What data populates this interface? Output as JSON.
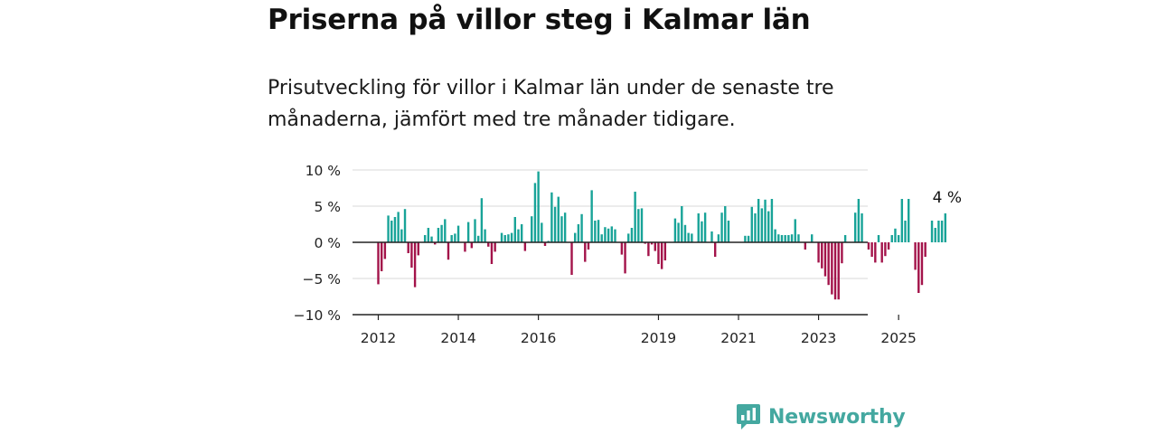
{
  "title": "Priserna på villor steg i Kalmar län",
  "subtitle": "Prisutveckling för villor i Kalmar län under de senaste tre månaderna, jämfört med tre månader tidigare.",
  "brand": {
    "name": "Newsworthy",
    "icon": "newsworthy-logo-icon",
    "color": "#44a8a0"
  },
  "colors": {
    "positive": "#18a398",
    "negative": "#a3134a",
    "grid": "#d9d9d9",
    "zero": "#222222"
  },
  "chart_data": {
    "type": "bar",
    "title": "Priserna på villor steg i Kalmar län",
    "xlabel": "",
    "ylabel": "",
    "ylim": [
      -10,
      10
    ],
    "yticks": [
      10,
      5,
      0,
      -5,
      -10
    ],
    "ytick_labels": [
      "10 %",
      "5 %",
      "0 %",
      "−5 %",
      "−10 %"
    ],
    "xtick_labels": [
      "2012",
      "2014",
      "2016",
      "2019",
      "2021",
      "2023",
      "2025"
    ],
    "x_start": "2012-01",
    "frequency": "monthly",
    "grid": true,
    "last_value_label": "4 %",
    "values": [
      -5.8,
      -4.0,
      -2.3,
      3.7,
      3.0,
      3.5,
      4.2,
      1.8,
      4.6,
      -1.5,
      -3.5,
      -6.2,
      -1.8,
      0.0,
      1.0,
      2.0,
      0.8,
      -0.3,
      2.0,
      2.4,
      3.2,
      -2.4,
      1.0,
      1.2,
      2.3,
      0.0,
      -1.3,
      2.8,
      -0.8,
      3.2,
      0.9,
      6.1,
      1.8,
      -0.6,
      -3.0,
      -1.3,
      0.0,
      1.3,
      1.0,
      1.1,
      1.3,
      3.5,
      1.8,
      2.5,
      -1.2,
      0.0,
      3.6,
      8.2,
      9.8,
      2.7,
      -0.5,
      0.2,
      6.9,
      4.9,
      6.3,
      3.6,
      4.1,
      0.0,
      -4.5,
      1.3,
      2.5,
      3.9,
      -2.7,
      -1.0,
      7.2,
      3.0,
      3.1,
      1.1,
      2.1,
      1.9,
      2.2,
      1.8,
      0.0,
      -1.7,
      -4.3,
      1.2,
      2.0,
      7.0,
      4.6,
      4.7,
      -0.2,
      -1.9,
      -0.3,
      -1.2,
      -3.0,
      -3.7,
      -2.5,
      0.0,
      0.0,
      3.3,
      2.7,
      5.0,
      2.4,
      1.3,
      1.2,
      0.0,
      4.0,
      2.9,
      4.1,
      0.0,
      1.5,
      -2.0,
      1.1,
      4.1,
      5.0,
      3.0,
      0.0,
      0.0,
      0.0,
      0.0,
      0.9,
      0.9,
      4.9,
      4.0,
      6.0,
      4.7,
      5.9,
      4.3,
      6.0,
      1.8,
      1.1,
      1.0,
      1.0,
      1.0,
      1.1,
      3.2,
      1.1,
      0.0,
      -1.0,
      0.0,
      1.1,
      0.0,
      -2.8,
      -3.6,
      -4.7,
      -5.9,
      -7.2,
      -7.9,
      -7.9,
      -2.9,
      1.0,
      0.0,
      0.0,
      4.1,
      6.0,
      4.0,
      0.0,
      -1.0,
      -2.0,
      -2.8,
      1.0,
      -2.8,
      -1.9,
      -1.0,
      1.0,
      1.9,
      1.0,
      6.0,
      3.0,
      6.0,
      0.0,
      -3.8,
      -7.0,
      -5.9,
      -2.0,
      0.0,
      3.0,
      2.0,
      3.0,
      3.0,
      4.0
    ]
  }
}
